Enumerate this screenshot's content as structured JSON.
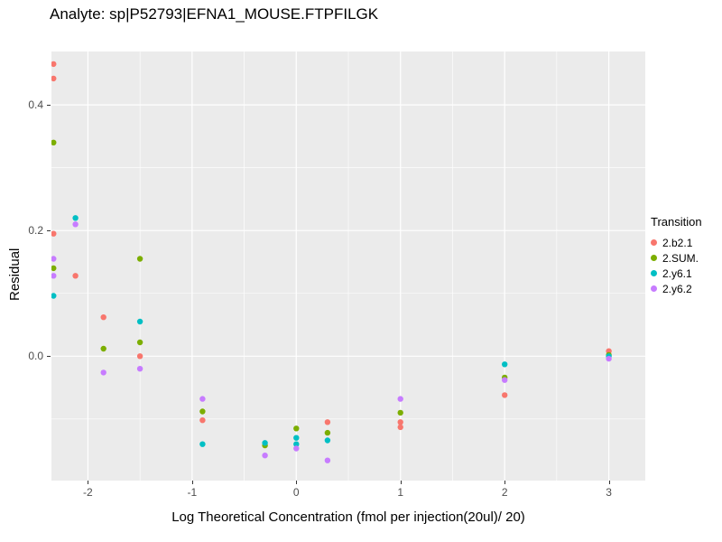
{
  "chart_data": {
    "type": "scatter",
    "title": "Analyte: sp|P52793|EFNA1_MOUSE.FTPFILGK",
    "xlabel": "Log Theoretical Concentration (fmol per injection(20ul)/ 20)",
    "ylabel": "Residual",
    "xlim": [
      -2.35,
      3.35
    ],
    "ylim": [
      -0.198,
      0.485
    ],
    "x_major_ticks": [
      -2,
      -1,
      0,
      1,
      2,
      3
    ],
    "x_minor_ticks": [
      -1.5,
      -0.5,
      0.5,
      1.5,
      2.5
    ],
    "y_major_ticks": [
      0.0,
      0.2,
      0.4
    ],
    "y_minor_ticks": [
      -0.1,
      0.1,
      0.3
    ],
    "grid": true,
    "panel_background": "#EBEBEB",
    "gridline_color": "#FFFFFF",
    "tick_label_color": "#4D4D4D",
    "legend_title": "Transition",
    "legend_position": "right",
    "series": [
      {
        "name": "2.b2.1",
        "color": "#F8766D",
        "points": [
          [
            -2.33,
            0.465
          ],
          [
            -2.33,
            0.442
          ],
          [
            -2.33,
            0.195
          ],
          [
            -2.12,
            0.128
          ],
          [
            -1.85,
            0.062
          ],
          [
            -1.5,
            0.0
          ],
          [
            -0.9,
            -0.102
          ],
          [
            0.3,
            -0.105
          ],
          [
            1,
            -0.105
          ],
          [
            1,
            -0.113
          ],
          [
            2,
            -0.062
          ],
          [
            3,
            0.008
          ]
        ]
      },
      {
        "name": "2.SUM.",
        "color": "#7CAE00",
        "points": [
          [
            -2.33,
            0.34
          ],
          [
            -2.33,
            0.14
          ],
          [
            -1.85,
            0.012
          ],
          [
            -1.5,
            0.155
          ],
          [
            -1.5,
            0.022
          ],
          [
            -0.9,
            -0.088
          ],
          [
            -0.3,
            -0.142
          ],
          [
            0,
            -0.115
          ],
          [
            0.3,
            -0.122
          ],
          [
            1,
            -0.09
          ],
          [
            2,
            -0.034
          ],
          [
            3,
            0.002
          ]
        ]
      },
      {
        "name": "2.y6.1",
        "color": "#00BFC4",
        "points": [
          [
            -2.33,
            0.096
          ],
          [
            -2.12,
            0.22
          ],
          [
            -1.5,
            0.055
          ],
          [
            -0.9,
            -0.14
          ],
          [
            -0.3,
            -0.138
          ],
          [
            0,
            -0.13
          ],
          [
            0,
            -0.14
          ],
          [
            0.3,
            -0.134
          ],
          [
            2,
            -0.013
          ],
          [
            3,
            0.0
          ]
        ]
      },
      {
        "name": "2.y6.2",
        "color": "#C77CFF",
        "points": [
          [
            -2.33,
            0.155
          ],
          [
            -2.33,
            0.128
          ],
          [
            -2.12,
            0.21
          ],
          [
            -1.85,
            -0.026
          ],
          [
            -1.5,
            -0.02
          ],
          [
            -0.9,
            -0.068
          ],
          [
            -0.3,
            -0.158
          ],
          [
            0,
            -0.147
          ],
          [
            0.3,
            -0.166
          ],
          [
            1,
            -0.068
          ],
          [
            2,
            -0.038
          ],
          [
            3,
            -0.004
          ]
        ]
      }
    ]
  }
}
